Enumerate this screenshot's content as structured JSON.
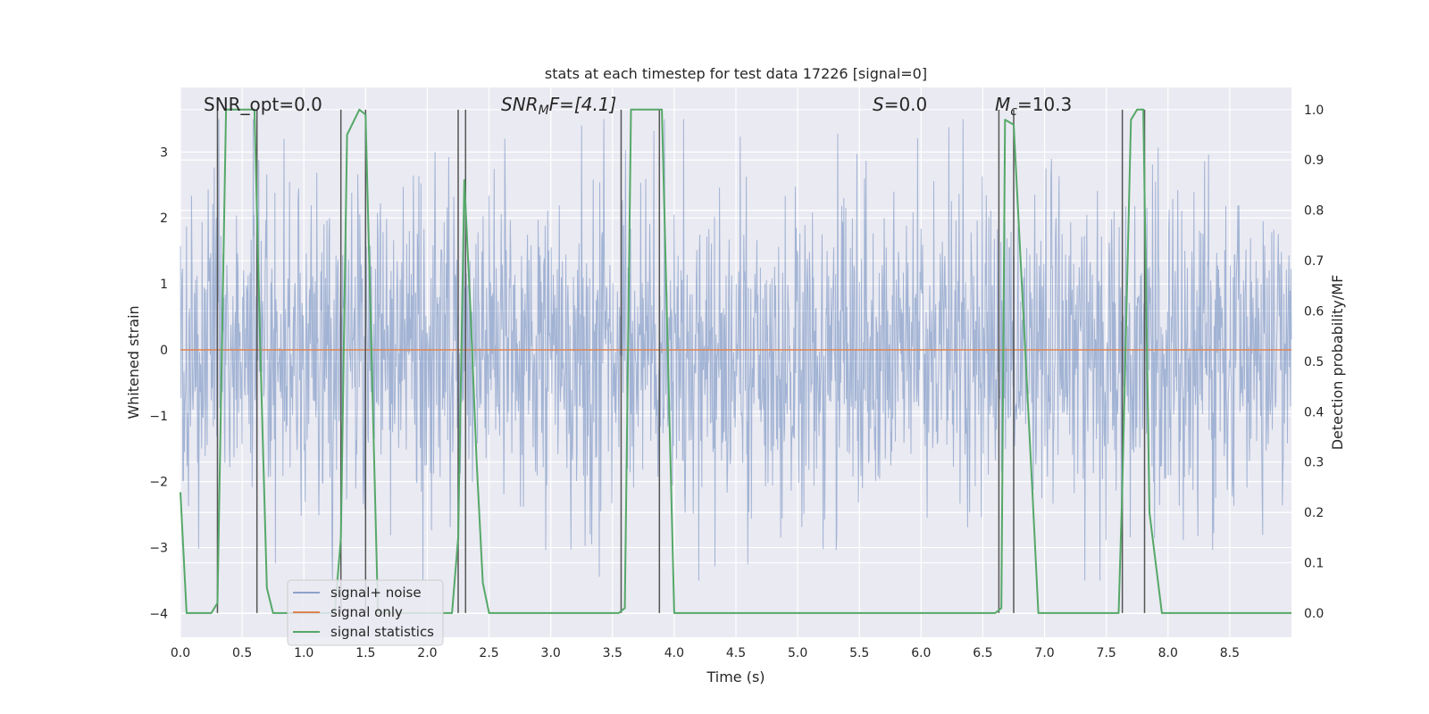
{
  "chart_data": {
    "type": "line",
    "title": "stats at each timestep for test data 17226 [signal=0]",
    "xlabel": "Time (s)",
    "ylabel_left": "Whitened strain",
    "ylabel_right": "Detection probability/MF",
    "xlim": [
      0.0,
      9.0
    ],
    "ylim_left": [
      -4.36,
      3.98
    ],
    "ylim_right": [
      -0.048,
      1.044
    ],
    "xticks": [
      "0.0",
      "0.5",
      "1.0",
      "1.5",
      "2.0",
      "2.5",
      "3.0",
      "3.5",
      "4.0",
      "4.5",
      "5.0",
      "5.5",
      "6.0",
      "6.5",
      "7.0",
      "7.5",
      "8.0",
      "8.5"
    ],
    "yticks_left": [
      "−4",
      "−3",
      "−2",
      "−1",
      "0",
      "1",
      "2",
      "3"
    ],
    "yticks_right": [
      "0.0",
      "0.1",
      "0.2",
      "0.3",
      "0.4",
      "0.5",
      "0.6",
      "0.7",
      "0.8",
      "0.9",
      "1.0"
    ],
    "grid": true,
    "annotations": {
      "snr_opt": "SNR_opt=0.0",
      "snr_mf_base": "SNR",
      "snr_mf_sub": "M",
      "snr_mf_rest": "F=[4.1]",
      "s_base": "S",
      "s_rest": "=0.0",
      "mc_base": "M",
      "mc_sub": "c",
      "mc_rest": "=10.3"
    },
    "legend": {
      "position": "lower-left",
      "entries": [
        "signal+ noise",
        "signal only",
        "signal statistics"
      ]
    },
    "colors": {
      "background": "#eaeaf2",
      "grid": "#ffffff",
      "noise": "#4c72b0",
      "signal": "#dd8452",
      "statistics": "#55a868",
      "vlines": "#555555"
    },
    "series": [
      {
        "name": "signal+ noise",
        "axis": "left",
        "description": "whitened strain noise, amplitude roughly within ±3.5",
        "envelope": [
          -3.5,
          3.5
        ]
      },
      {
        "name": "signal only",
        "axis": "left",
        "x": [
          0.0,
          9.0
        ],
        "y": [
          0.0,
          0.0
        ]
      },
      {
        "name": "signal statistics",
        "axis": "right",
        "x": [
          0.0,
          0.05,
          0.25,
          0.3,
          0.37,
          0.4,
          0.6,
          0.65,
          0.7,
          0.75,
          1.25,
          1.3,
          1.35,
          1.45,
          1.5,
          1.55,
          1.6,
          2.2,
          2.25,
          2.3,
          2.35,
          2.4,
          2.45,
          2.5,
          3.55,
          3.6,
          3.65,
          3.9,
          4.0,
          6.6,
          6.65,
          6.68,
          6.75,
          6.9,
          6.95,
          7.6,
          7.63,
          7.7,
          7.75,
          7.8,
          7.85,
          7.95,
          9.0
        ],
        "y": [
          0.24,
          0.0,
          0.0,
          0.02,
          1.0,
          1.0,
          1.0,
          0.5,
          0.05,
          0.0,
          0.0,
          0.15,
          0.95,
          1.0,
          0.99,
          0.5,
          0.0,
          0.0,
          0.15,
          0.86,
          0.6,
          0.3,
          0.06,
          0.0,
          0.0,
          0.01,
          1.0,
          1.0,
          0.0,
          0.0,
          0.01,
          0.98,
          0.97,
          0.25,
          0.0,
          0.0,
          0.25,
          0.98,
          1.0,
          1.0,
          0.2,
          0.0,
          0.0
        ]
      }
    ],
    "vertical_lines_x": [
      0.3,
      0.62,
      1.3,
      1.5,
      2.25,
      2.31,
      3.57,
      3.88,
      6.63,
      6.75,
      7.63,
      7.81
    ]
  }
}
